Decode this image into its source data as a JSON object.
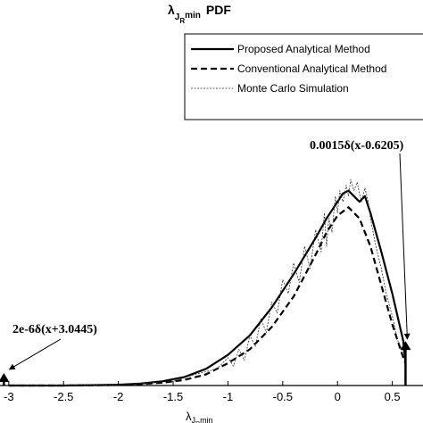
{
  "chart_data": {
    "type": "line",
    "title": {
      "main": "λ",
      "sub1": "J",
      "sub2": "R",
      "sub3": "min",
      "suffix": "PDF"
    },
    "xlabel": {
      "main": "λ",
      "sub1": "J",
      "sub2": "R",
      "sub3": "min"
    },
    "xlim": [
      -3.08,
      0.78
    ],
    "ylim": [
      0,
      1
    ],
    "x_ticks": [
      -3,
      -2.5,
      -2,
      -1.5,
      -1,
      -0.5,
      0,
      0.5
    ],
    "x_tick_labels": [
      "-3",
      "-2.5",
      "-2",
      "-1.5",
      "-1",
      "-0.5",
      "0",
      "0.5"
    ],
    "legend": {
      "placement": "top-right"
    },
    "series": [
      {
        "name": "Proposed Analytical Method",
        "style": "solid",
        "x": [
          -3.0,
          -2.5,
          -2.0,
          -1.8,
          -1.6,
          -1.4,
          -1.2,
          -1.0,
          -0.8,
          -0.6,
          -0.4,
          -0.2,
          -0.1,
          0.0,
          0.05,
          0.1,
          0.15,
          0.2,
          0.25,
          0.3,
          0.4,
          0.5,
          0.6,
          0.62
        ],
        "y": [
          0.0,
          0.0,
          0.003,
          0.007,
          0.015,
          0.03,
          0.06,
          0.11,
          0.18,
          0.28,
          0.4,
          0.53,
          0.6,
          0.66,
          0.69,
          0.7,
          0.68,
          0.66,
          0.68,
          0.62,
          0.48,
          0.33,
          0.16,
          0.08
        ]
      },
      {
        "name": "Conventional Analytical Method",
        "style": "dashed",
        "x": [
          -3.0,
          -2.5,
          -2.0,
          -1.8,
          -1.6,
          -1.4,
          -1.2,
          -1.0,
          -0.8,
          -0.6,
          -0.4,
          -0.2,
          -0.1,
          0.0,
          0.1,
          0.2,
          0.3,
          0.4,
          0.5,
          0.6,
          0.62
        ],
        "y": [
          0.0,
          0.0,
          0.002,
          0.005,
          0.01,
          0.02,
          0.04,
          0.08,
          0.13,
          0.21,
          0.32,
          0.47,
          0.55,
          0.61,
          0.64,
          0.6,
          0.5,
          0.36,
          0.22,
          0.1,
          0.08
        ]
      },
      {
        "name": "Monte Carlo Simulation",
        "style": "dotted",
        "x": [
          -3.0,
          -2.0,
          -1.5,
          -1.3,
          -1.2,
          -1.1,
          -1.0,
          -0.95,
          -0.9,
          -0.85,
          -0.8,
          -0.75,
          -0.7,
          -0.65,
          -0.6,
          -0.55,
          -0.5,
          -0.45,
          -0.4,
          -0.35,
          -0.3,
          -0.25,
          -0.2,
          -0.15,
          -0.12,
          -0.1,
          -0.08,
          -0.05,
          -0.02,
          0.0,
          0.02,
          0.05,
          0.08,
          0.1,
          0.12,
          0.15,
          0.18,
          0.2,
          0.22,
          0.25,
          0.28,
          0.3,
          0.35,
          0.4,
          0.45,
          0.5,
          0.55,
          0.6
        ],
        "y": [
          0.0,
          0.003,
          0.015,
          0.04,
          0.05,
          0.06,
          0.1,
          0.07,
          0.13,
          0.09,
          0.18,
          0.14,
          0.24,
          0.19,
          0.3,
          0.26,
          0.38,
          0.33,
          0.44,
          0.37,
          0.5,
          0.42,
          0.56,
          0.48,
          0.62,
          0.5,
          0.6,
          0.55,
          0.68,
          0.62,
          0.7,
          0.66,
          0.72,
          0.68,
          0.74,
          0.7,
          0.73,
          0.69,
          0.66,
          0.71,
          0.66,
          0.6,
          0.5,
          0.42,
          0.32,
          0.25,
          0.16,
          0.12
        ]
      }
    ],
    "impulses": [
      {
        "x": -3.0445,
        "height": 0.045,
        "label": "2e-6δ(x+3.0445)"
      },
      {
        "x": 0.6205,
        "height": 0.16,
        "label": "0.0015δ(x-0.6205)"
      }
    ]
  }
}
